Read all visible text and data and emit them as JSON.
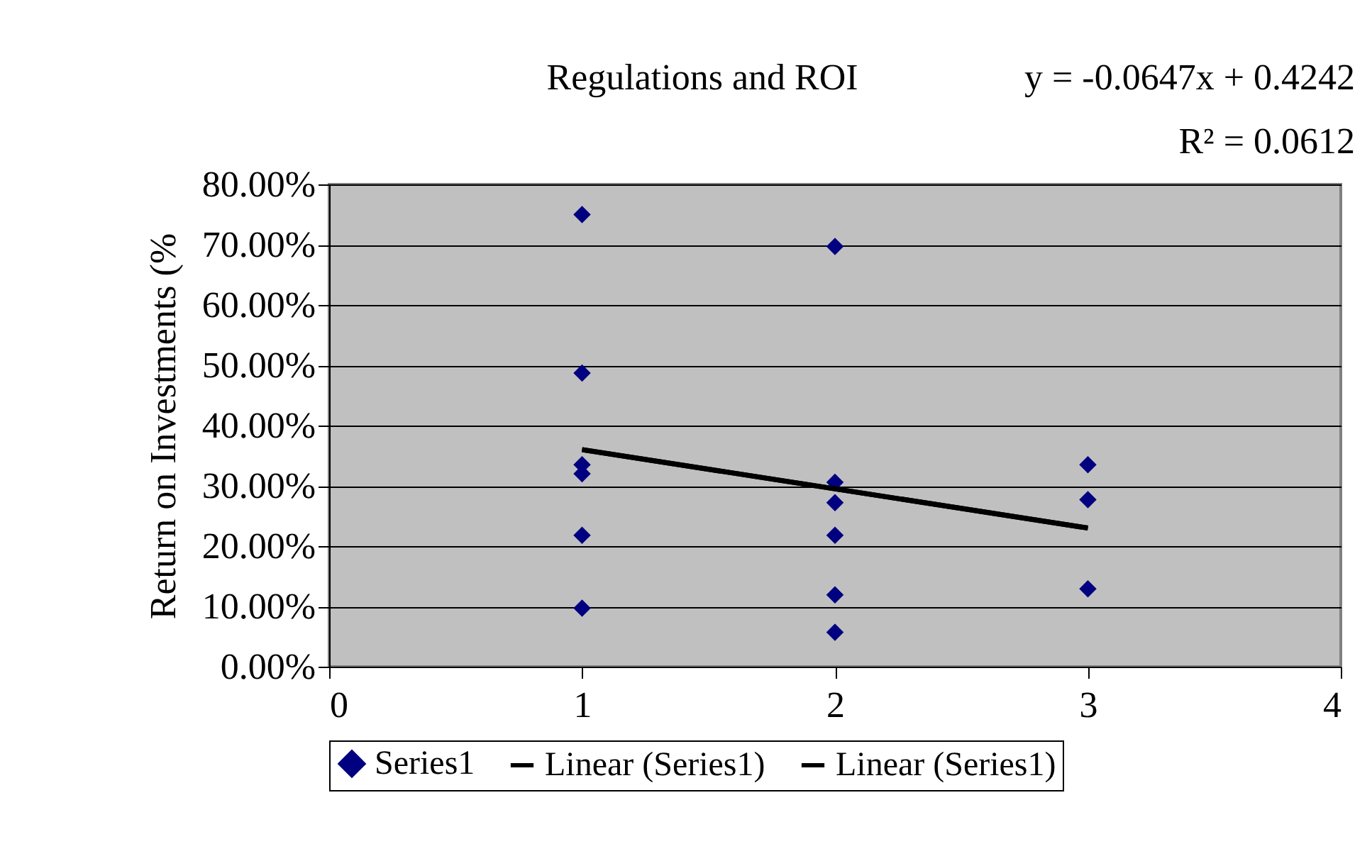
{
  "chart_data": {
    "type": "scatter",
    "title": "Regulations and ROI",
    "ylabel": "Return on Investments (%",
    "annotations": [
      "y = -0.0647x + 0.4242",
      "R² = 0.0612"
    ],
    "series": [
      {
        "name": "Series1",
        "color": "#000080",
        "marker": "diamond",
        "x": [
          1,
          1,
          1,
          1,
          1,
          1,
          2,
          2,
          2,
          2,
          2,
          2,
          3,
          3,
          3
        ],
        "values": [
          75,
          48.7,
          33.5,
          32,
          21.8,
          9.7,
          69.7,
          30.6,
          27.2,
          21.8,
          11.9,
          5.7,
          33.5,
          27.7,
          12.9
        ]
      },
      {
        "name": "Linear (Series1)",
        "type": "line",
        "color": "#000000",
        "x": [
          1,
          3
        ],
        "values": [
          36,
          23
        ]
      },
      {
        "name": "Linear (Series1)",
        "type": "line",
        "color": "#000000",
        "x": [
          1,
          3
        ],
        "values": [
          36,
          23
        ]
      }
    ],
    "xlim": [
      0,
      4
    ],
    "xticks": [
      0,
      1,
      2,
      3,
      4
    ],
    "ylim": [
      0,
      80
    ],
    "yticks": [
      {
        "value": 0,
        "label": "0.00%"
      },
      {
        "value": 10,
        "label": "10.00%"
      },
      {
        "value": 20,
        "label": "20.00%"
      },
      {
        "value": 30,
        "label": "30.00%"
      },
      {
        "value": 40,
        "label": "40.00%"
      },
      {
        "value": 50,
        "label": "50.00%"
      },
      {
        "value": 60,
        "label": "60.00%"
      },
      {
        "value": 70,
        "label": "70.00%"
      },
      {
        "value": 80,
        "label": "80.00%"
      }
    ],
    "grid": "y",
    "legend": "bottom"
  }
}
